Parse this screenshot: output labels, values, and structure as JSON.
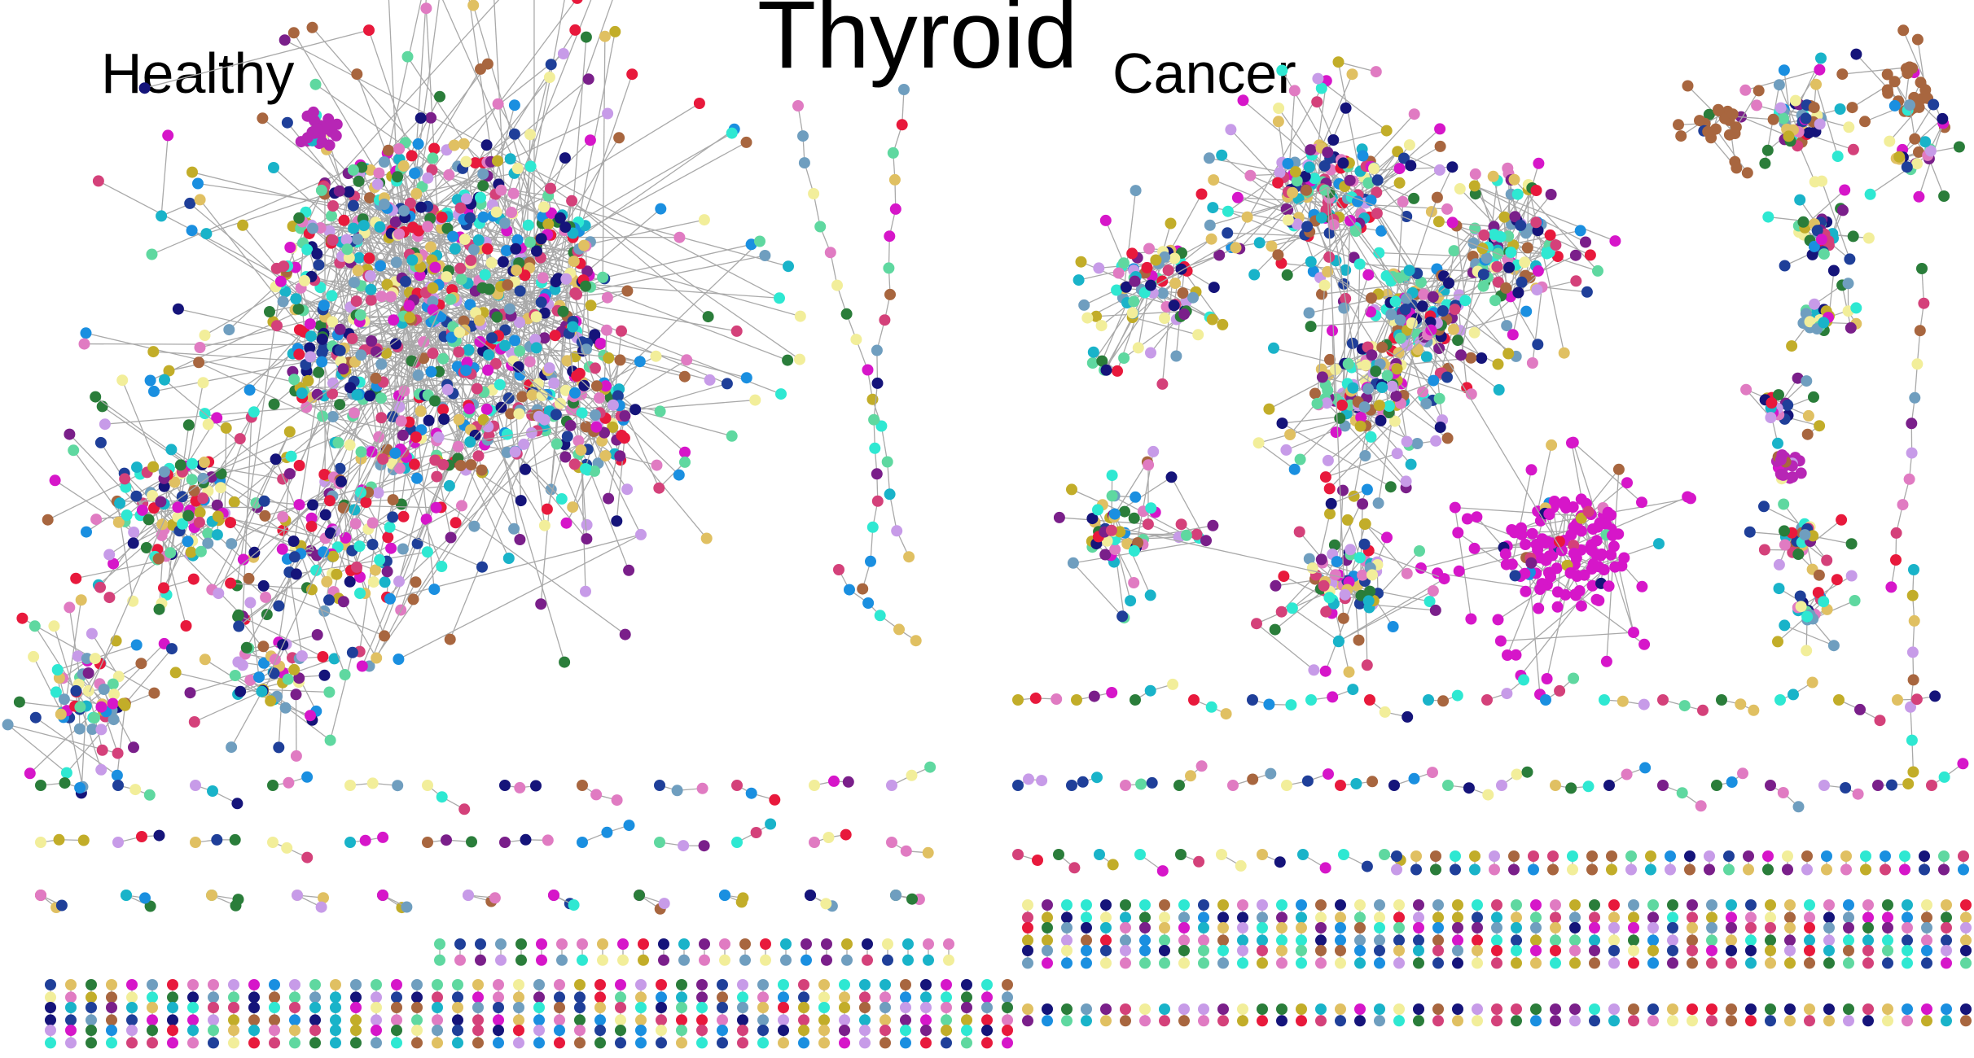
{
  "title": "Thyroid",
  "panels": {
    "healthy": {
      "label": "Healthy"
    },
    "cancer": {
      "label": "Cancer"
    }
  },
  "palette": [
    "#1f3f99",
    "#e8193c",
    "#19b3c9",
    "#7a1f8a",
    "#e0c062",
    "#2ee8d2",
    "#c79be8",
    "#a8663f",
    "#2a7d3a",
    "#1a8fe0",
    "#f2ee9a",
    "#6f9ebf",
    "#d616c9",
    "#c2ad29",
    "#5fd8a0",
    "#15147a",
    "#e07bc2",
    "#d4417a"
  ],
  "edge_color": "#a9a9a9"
}
